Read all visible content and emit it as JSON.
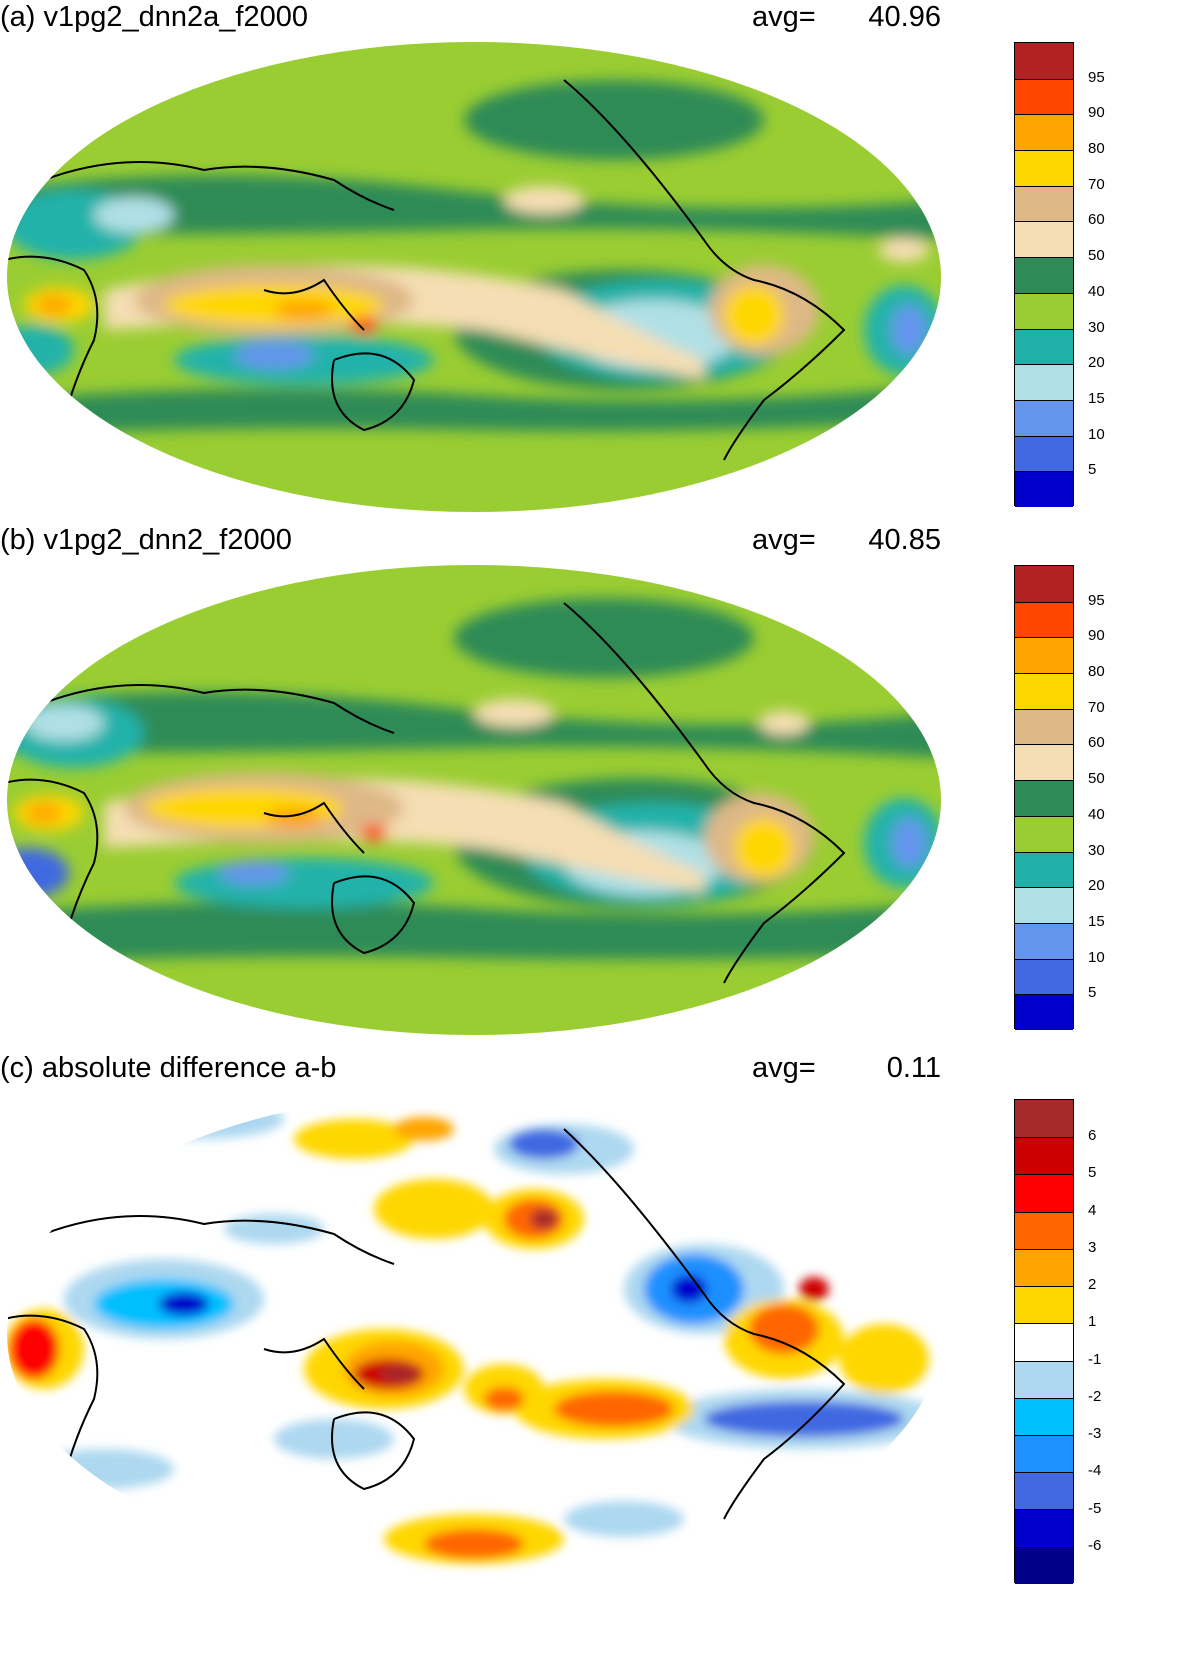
{
  "panels": [
    {
      "title": "(a) v1pg2_dnn2a_f2000",
      "avg_label": "avg=",
      "avg_value": "40.96",
      "colorbar": {
        "labels": [
          "95",
          "90",
          "80",
          "70",
          "60",
          "50",
          "40",
          "30",
          "20",
          "15",
          "10",
          "5"
        ],
        "colors": [
          "#b22222",
          "#ff4500",
          "#ffa500",
          "#ffd700",
          "#deb887",
          "#f5deb3",
          "#2e8b57",
          "#9acd32",
          "#20b2aa",
          "#b0e0e6",
          "#6495ed",
          "#4169e1",
          "#0000cd"
        ]
      }
    },
    {
      "title": "(b) v1pg2_dnn2_f2000",
      "avg_label": "avg=",
      "avg_value": "40.85",
      "colorbar": {
        "labels": [
          "95",
          "90",
          "80",
          "70",
          "60",
          "50",
          "40",
          "30",
          "20",
          "15",
          "10",
          "5"
        ],
        "colors": [
          "#b22222",
          "#ff4500",
          "#ffa500",
          "#ffd700",
          "#deb887",
          "#f5deb3",
          "#2e8b57",
          "#9acd32",
          "#20b2aa",
          "#b0e0e6",
          "#6495ed",
          "#4169e1",
          "#0000cd"
        ]
      }
    },
    {
      "title": "(c) absolute difference a-b",
      "avg_label": "avg=",
      "avg_value": "0.11",
      "colorbar": {
        "labels": [
          "6",
          "5",
          "4",
          "3",
          "2",
          "1",
          "-1",
          "-2",
          "-3",
          "-4",
          "-5",
          "-6"
        ],
        "colors": [
          "#a52a2a",
          "#cc0000",
          "#ff0000",
          "#ff6600",
          "#ffa500",
          "#ffd700",
          "#ffffff",
          "#add8f0",
          "#00bfff",
          "#1e90ff",
          "#4169e1",
          "#0000cd",
          "#00008b"
        ]
      }
    }
  ]
}
